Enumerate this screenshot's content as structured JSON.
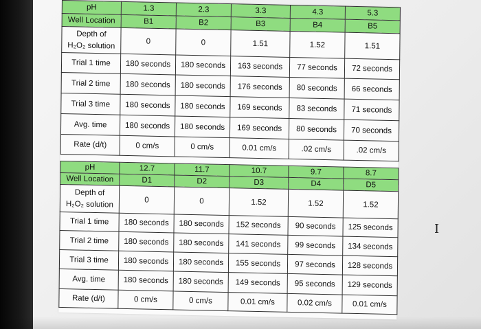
{
  "tables": [
    {
      "rows": [
        {
          "label": "pH",
          "cells": [
            "1.3",
            "2.3",
            "3.3",
            "4.3",
            "5.3"
          ],
          "style": "green"
        },
        {
          "label": "Well Location",
          "cells": [
            "B1",
            "B2",
            "B3",
            "B4",
            "B5"
          ],
          "style": "green"
        },
        {
          "label": "Depth of",
          "label2": "H₂O₂ solution",
          "cells": [
            "0",
            "0",
            "1.51",
            "1.52",
            "1.51"
          ],
          "style": "plain"
        },
        {
          "label": "Trial 1 time",
          "cells": [
            "180 seconds",
            "180 seconds",
            "163 seconds",
            "77 seconds",
            "72 seconds"
          ],
          "style": "plain"
        },
        {
          "label": "Trial 2 time",
          "cells": [
            "180 seconds",
            "180 seconds",
            "176 seconds",
            "80 seconds",
            "66 seconds"
          ],
          "style": "plain"
        },
        {
          "label": "Trial 3 time",
          "cells": [
            "180 seconds",
            "180 seconds",
            "169 seconds",
            "83 seconds",
            "71 seconds"
          ],
          "style": "plain"
        },
        {
          "label": "Avg. time",
          "cells": [
            "180 seconds",
            "180 seconds",
            "169 seconds",
            "80 seconds",
            "70 seconds"
          ],
          "style": "plain"
        },
        {
          "label": "Rate (d/t)",
          "cells": [
            "0 cm/s",
            "0 cm/s",
            "0.01 cm/s",
            ".02 cm/s",
            ".02 cm/s"
          ],
          "style": "plain"
        }
      ]
    },
    {
      "rows": [
        {
          "label": "pH",
          "cells": [
            "12.7",
            "11.7",
            "10.7",
            "9.7",
            "8.7"
          ],
          "style": "green"
        },
        {
          "label": "Well Location",
          "cells": [
            "D1",
            "D2",
            "D3",
            "D4",
            "D5"
          ],
          "style": "green"
        },
        {
          "label": "Depth of",
          "label2": "H₂O₂ solution",
          "cells": [
            "0",
            "0",
            "1.52",
            "1.52",
            "1.52"
          ],
          "style": "plain"
        },
        {
          "label": "Trial 1 time",
          "cells": [
            "180 seconds",
            "180 seconds",
            "152 seconds",
            "90 seconds",
            "125 seconds"
          ],
          "style": "plain"
        },
        {
          "label": "Trial 2 time",
          "cells": [
            "180 seconds",
            "180 seconds",
            "141 seconds",
            "99 seconds",
            "134 seconds"
          ],
          "style": "plain"
        },
        {
          "label": "Trial 3 time",
          "cells": [
            "180 seconds",
            "180 seconds",
            "155 seconds",
            "97 seconds",
            "128 seconds"
          ],
          "style": "plain"
        },
        {
          "label": "Avg. time",
          "cells": [
            "180 seconds",
            "180 seconds",
            "149 seconds",
            "95 seconds",
            "129 seconds"
          ],
          "style": "plain"
        },
        {
          "label": "Rate (d/t)",
          "cells": [
            "0 cm/s",
            "0 cm/s",
            "0.01 cm/s",
            "0.02 cm/s",
            "0.01 cm/s"
          ],
          "style": "plain"
        }
      ]
    }
  ],
  "cursor": {
    "glyph": "I",
    "icon": "text-cursor-icon"
  }
}
